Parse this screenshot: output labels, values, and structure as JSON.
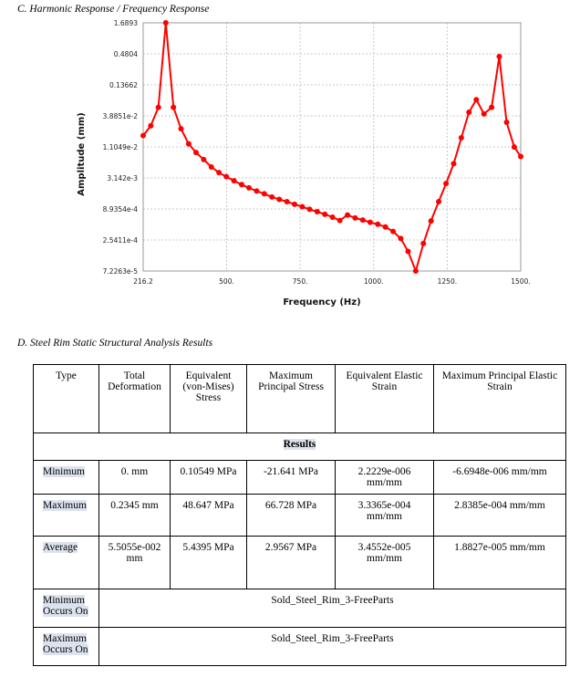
{
  "section_c": {
    "title": "C.   Harmonic Response / Frequency Response"
  },
  "section_d": {
    "title": "D.   Steel Rim Static Structural Analysis Results"
  },
  "chart_data": {
    "type": "line",
    "xlabel": "Frequency (Hz)",
    "ylabel": "Amplitude (mm)",
    "y_scale": "log",
    "xlim": [
      216.2,
      1500
    ],
    "x_ticks": [
      "216.2",
      "500.",
      "750.",
      "1000.",
      "1250.",
      "1500."
    ],
    "x_tick_values": [
      216.2,
      500,
      750,
      1000,
      1250,
      1500
    ],
    "y_ticks": [
      "1.6893",
      "0.4804",
      "0.13662",
      "3.8851e-2",
      "1.1049e-2",
      "3.142e-3",
      "8.9354e-4",
      "2.5411e-4",
      "7.2263e-5"
    ],
    "y_tick_values": [
      1.6893,
      0.4804,
      0.13662,
      0.038851,
      0.011049,
      0.003142,
      0.00089354,
      0.00025411,
      7.2263e-05
    ],
    "grid": true,
    "color": "#ff0000",
    "x": [
      216.2,
      242,
      268,
      293,
      319,
      345,
      371,
      396,
      422,
      448,
      474,
      499,
      525,
      551,
      576,
      602,
      628,
      654,
      679,
      705,
      731,
      757,
      782,
      808,
      834,
      860,
      885,
      911,
      937,
      963,
      988,
      1014,
      1040,
      1066,
      1092,
      1117,
      1143,
      1169,
      1195,
      1221,
      1246,
      1272,
      1298,
      1324,
      1349,
      1375,
      1401,
      1427,
      1452,
      1478,
      1500
    ],
    "y": [
      0.0175,
      0.026,
      0.055,
      1.6893,
      0.055,
      0.023,
      0.0125,
      0.0088,
      0.0066,
      0.0049,
      0.0039,
      0.0033,
      0.0028,
      0.0024,
      0.0021,
      0.00185,
      0.00165,
      0.00145,
      0.00132,
      0.0012,
      0.00108,
      0.00098,
      0.00088,
      0.0008,
      0.00072,
      0.00064,
      0.00056,
      0.0007,
      0.00062,
      0.00057,
      0.00052,
      0.00048,
      0.00043,
      0.00036,
      0.00027,
      0.00016,
      7.2263e-05,
      0.00022,
      0.00055,
      0.0012,
      0.0025,
      0.0056,
      0.016,
      0.045,
      0.075,
      0.042,
      0.055,
      0.43,
      0.03,
      0.011,
      0.0075
    ]
  },
  "table": {
    "headers": [
      "Type",
      "Total Deformation",
      "Equivalent (von-Mises) Stress",
      "Maximum Principal Stress",
      "Equivalent Elastic Strain",
      "Maximum Principal Elastic Strain"
    ],
    "section": "Results",
    "rows": [
      {
        "label": "Minimum",
        "values": [
          "0. mm",
          "0.10549 MPa",
          "-21.641 MPa",
          "2.2229e-006 mm/mm",
          "-6.6948e-006 mm/mm"
        ]
      },
      {
        "label": "Maximum",
        "values": [
          "0.2345 mm",
          "48.647 MPa",
          "66.728 MPa",
          "3.3365e-004 mm/mm",
          "2.8385e-004 mm/mm"
        ]
      },
      {
        "label": "Average",
        "values": [
          "5.5055e-002 mm",
          "5.4395 MPa",
          "2.9567 MPa",
          "3.4552e-005 mm/mm",
          "1.8827e-005 mm/mm"
        ]
      }
    ],
    "occurs": [
      {
        "label": "Minimum Occurs On",
        "value": "Sold_Steel_Rim_3-FreeParts"
      },
      {
        "label": "Maximum Occurs On",
        "value": "Sold_Steel_Rim_3-FreeParts"
      }
    ]
  }
}
